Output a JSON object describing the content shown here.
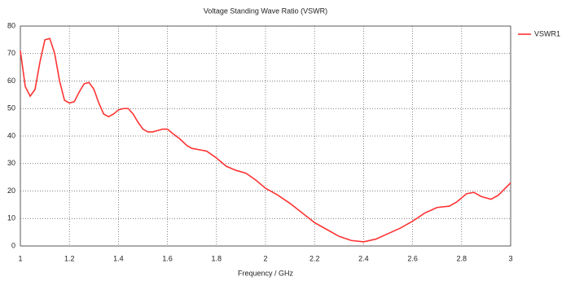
{
  "chart_data": {
    "type": "line",
    "title": "Voltage Standing Wave Ratio (VSWR)",
    "x_label": "Frequency / GHz",
    "x": [
      1.0,
      1.02,
      1.04,
      1.06,
      1.08,
      1.1,
      1.12,
      1.14,
      1.16,
      1.18,
      1.2,
      1.22,
      1.24,
      1.26,
      1.28,
      1.3,
      1.32,
      1.34,
      1.36,
      1.38,
      1.4,
      1.42,
      1.44,
      1.46,
      1.48,
      1.5,
      1.52,
      1.54,
      1.56,
      1.58,
      1.6,
      1.62,
      1.65,
      1.68,
      1.7,
      1.73,
      1.76,
      1.8,
      1.84,
      1.88,
      1.92,
      1.96,
      2.0,
      2.05,
      2.1,
      2.15,
      2.2,
      2.25,
      2.3,
      2.35,
      2.4,
      2.45,
      2.5,
      2.55,
      2.6,
      2.65,
      2.7,
      2.75,
      2.78,
      2.82,
      2.85,
      2.88,
      2.92,
      2.95,
      3.0
    ],
    "series": [
      {
        "name": "VSWR1",
        "color": "#ff3333",
        "values": [
          71,
          58,
          54.5,
          57,
          67,
          75,
          75.5,
          70,
          60,
          53,
          52,
          52.5,
          56,
          59,
          59.5,
          57,
          52,
          48,
          47,
          48,
          49.5,
          50,
          50,
          48,
          45,
          42.5,
          41.5,
          41.5,
          42,
          42.5,
          42.5,
          41,
          39,
          36.5,
          35.5,
          35,
          34.5,
          32,
          29,
          27.5,
          26.5,
          24,
          21,
          18.5,
          15.5,
          12,
          8.5,
          6,
          3.5,
          2,
          1.5,
          2.5,
          4.5,
          6.5,
          9,
          12,
          14,
          14.5,
          16,
          19,
          19.5,
          18,
          17,
          18.5,
          23
        ]
      }
    ],
    "xlim": [
      1,
      3
    ],
    "xticks": [
      1,
      1.2,
      1.4,
      1.6,
      1.8,
      2,
      2.2,
      2.4,
      2.6,
      2.8,
      3
    ],
    "ylim": [
      0,
      80
    ],
    "yticks": [
      0,
      10,
      20,
      30,
      40,
      50,
      60,
      70,
      80
    ],
    "grid": true,
    "legend": "right"
  }
}
